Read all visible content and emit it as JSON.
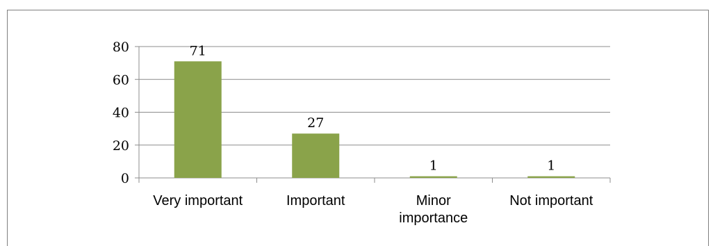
{
  "chart_data": {
    "type": "bar",
    "categories": [
      [
        "Very important"
      ],
      [
        "Important"
      ],
      [
        "Minor",
        "importance"
      ],
      [
        "Not important"
      ]
    ],
    "values": [
      71,
      27,
      1,
      1
    ],
    "data_labels": [
      "71",
      "27",
      "1",
      "1"
    ],
    "ylim": [
      0,
      80
    ],
    "yticks": [
      "0",
      "20",
      "40",
      "60",
      "80"
    ],
    "grid": true,
    "legend": "none",
    "bar_color": "#8aa34a",
    "grid_color": "#8c8c8c"
  }
}
